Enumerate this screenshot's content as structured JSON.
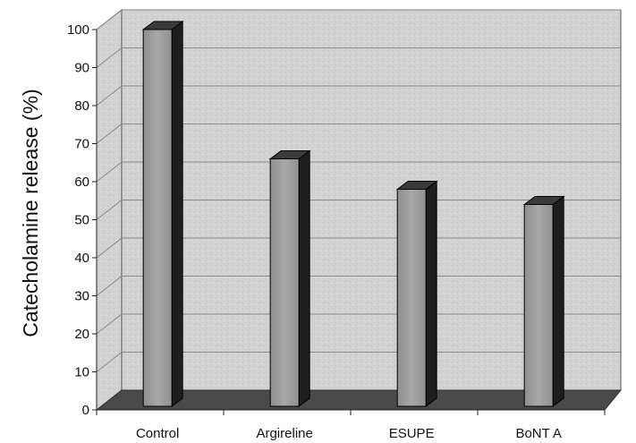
{
  "chart_data": {
    "type": "bar",
    "categories": [
      "Control",
      "Argireline",
      "ESUPE",
      "BoNT A"
    ],
    "values": [
      100,
      66,
      58,
      54
    ],
    "ylabel": "Catecholamine release (%)",
    "xlabel": "",
    "ylim": [
      0,
      100
    ],
    "yticks": [
      0,
      10,
      20,
      30,
      40,
      50,
      60,
      70,
      80,
      90,
      100
    ],
    "grid": true,
    "style": "3d-column",
    "colors": {
      "bar_front": "#9a9a9a",
      "bar_side": "#1e1e1e",
      "bar_top": "#3a3a3a",
      "wall": "#cfcfcf",
      "floor": "#4a4a4a",
      "grid": "#8a8a8a"
    }
  }
}
